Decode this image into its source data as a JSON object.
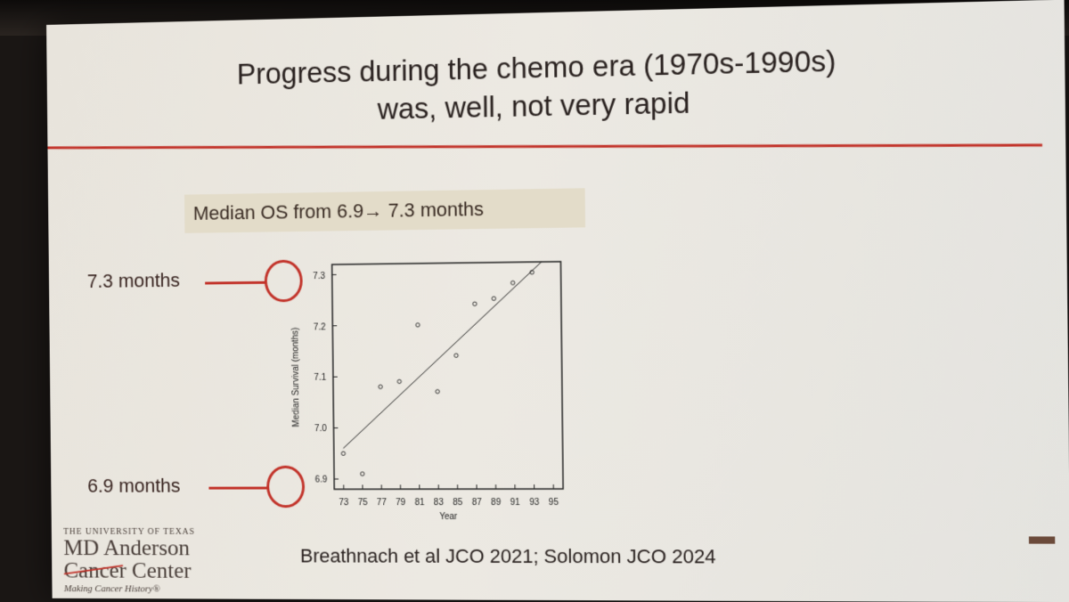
{
  "slide": {
    "title_line1": "Progress during the chemo era (1970s-1990s)",
    "title_line2": "was, well, not very rapid",
    "subtitle": "Median OS from 6.9→ 7.3 months",
    "callout_top": "7.3 months",
    "callout_bottom": "6.9 months",
    "citation": "Breathnach et al JCO 2021; Solomon JCO 2024",
    "accent_color": "#c2332a"
  },
  "logo": {
    "university_line": "THE UNIVERSITY OF TEXAS",
    "name_line1": "MD Anderson",
    "name_line2": "Cancer Center",
    "tagline": "Making Cancer History®"
  },
  "chart_data": {
    "type": "scatter",
    "xlabel": "Year",
    "ylabel": "Median Survival (months)",
    "x_ticks": [
      "73",
      "75",
      "77",
      "79",
      "81",
      "83",
      "85",
      "87",
      "89",
      "91",
      "93",
      "95"
    ],
    "y_ticks": [
      "6.9",
      "7.0",
      "7.1",
      "7.2",
      "7.3"
    ],
    "xlim": [
      72,
      96
    ],
    "ylim": [
      6.88,
      7.32
    ],
    "points": [
      {
        "x": 73,
        "y": 6.95
      },
      {
        "x": 75,
        "y": 6.91
      },
      {
        "x": 77,
        "y": 7.08
      },
      {
        "x": 79,
        "y": 7.09
      },
      {
        "x": 81,
        "y": 7.2
      },
      {
        "x": 83,
        "y": 7.07
      },
      {
        "x": 85,
        "y": 7.14
      },
      {
        "x": 87,
        "y": 7.24
      },
      {
        "x": 89,
        "y": 7.25
      },
      {
        "x": 91,
        "y": 7.28
      },
      {
        "x": 93,
        "y": 7.3
      }
    ],
    "trendline": {
      "x": [
        73,
        94
      ],
      "y": [
        6.96,
        7.32
      ]
    },
    "grid": false
  }
}
